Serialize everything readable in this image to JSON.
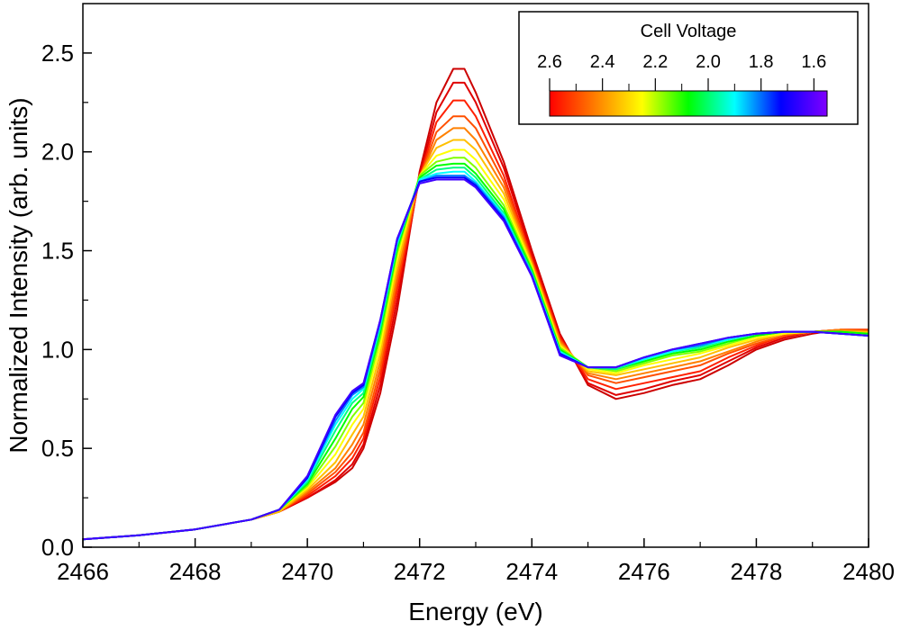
{
  "chart_data": {
    "type": "line",
    "title": "",
    "xlabel": "Energy (eV)",
    "ylabel": "Normalized Intensity (arb. units)",
    "xlim": [
      2466,
      2480
    ],
    "ylim": [
      0.0,
      2.75
    ],
    "x_ticks": [
      2466,
      2468,
      2470,
      2472,
      2474,
      2476,
      2478,
      2480
    ],
    "x_tick_labels": [
      "2466",
      "2468",
      "2470",
      "2472",
      "2474",
      "2476",
      "2478",
      "2480"
    ],
    "y_ticks": [
      0.0,
      0.5,
      1.0,
      1.5,
      2.0,
      2.5
    ],
    "y_tick_labels": [
      "0.0",
      "0.5",
      "1.0",
      "1.5",
      "2.0",
      "2.5"
    ],
    "grid": false,
    "colorbar": {
      "title": "Cell Voltage",
      "placement": "top-right",
      "range": [
        2.6,
        1.55
      ],
      "ticks": [
        2.6,
        2.4,
        2.2,
        2.0,
        1.8,
        1.6
      ],
      "tick_labels": [
        "2.6",
        "2.4",
        "2.2",
        "2.0",
        "1.8",
        "1.6"
      ],
      "colors": [
        "#ff0000",
        "#ff8000",
        "#ffff00",
        "#00ff00",
        "#00ffff",
        "#0000ff",
        "#8000ff"
      ]
    },
    "x": [
      2466.0,
      2467.0,
      2468.0,
      2469.0,
      2469.5,
      2470.0,
      2470.5,
      2470.8,
      2471.0,
      2471.3,
      2471.6,
      2472.0,
      2472.3,
      2472.6,
      2472.8,
      2473.0,
      2473.5,
      2474.0,
      2474.5,
      2475.0,
      2475.5,
      2476.0,
      2476.5,
      2477.0,
      2477.5,
      2478.0,
      2478.5,
      2479.0,
      2479.5,
      2480.0
    ],
    "series": [
      {
        "voltage": 2.6,
        "color": "#cc0000",
        "values": [
          0.04,
          0.06,
          0.09,
          0.14,
          0.18,
          0.25,
          0.33,
          0.4,
          0.5,
          0.78,
          1.2,
          1.9,
          2.25,
          2.42,
          2.42,
          2.3,
          1.95,
          1.5,
          1.08,
          0.82,
          0.75,
          0.78,
          0.82,
          0.85,
          0.92,
          1.0,
          1.05,
          1.08,
          1.1,
          1.1
        ]
      },
      {
        "voltage": 2.55,
        "color": "#e00000",
        "values": [
          0.04,
          0.06,
          0.09,
          0.14,
          0.18,
          0.25,
          0.34,
          0.42,
          0.52,
          0.82,
          1.25,
          1.88,
          2.2,
          2.35,
          2.35,
          2.25,
          1.92,
          1.48,
          1.07,
          0.83,
          0.77,
          0.8,
          0.84,
          0.87,
          0.94,
          1.01,
          1.06,
          1.09,
          1.1,
          1.1
        ]
      },
      {
        "voltage": 2.5,
        "color": "#ff2000",
        "values": [
          0.04,
          0.06,
          0.09,
          0.14,
          0.18,
          0.26,
          0.36,
          0.45,
          0.55,
          0.86,
          1.3,
          1.87,
          2.15,
          2.26,
          2.26,
          2.18,
          1.88,
          1.46,
          1.06,
          0.85,
          0.8,
          0.83,
          0.86,
          0.89,
          0.96,
          1.02,
          1.07,
          1.09,
          1.1,
          1.1
        ]
      },
      {
        "voltage": 2.45,
        "color": "#ff5000",
        "values": [
          0.04,
          0.06,
          0.09,
          0.14,
          0.18,
          0.27,
          0.38,
          0.48,
          0.58,
          0.9,
          1.34,
          1.87,
          2.1,
          2.18,
          2.18,
          2.12,
          1.85,
          1.45,
          1.05,
          0.87,
          0.83,
          0.86,
          0.89,
          0.92,
          0.98,
          1.03,
          1.07,
          1.09,
          1.1,
          1.1
        ]
      },
      {
        "voltage": 2.4,
        "color": "#ff8000",
        "values": [
          0.04,
          0.06,
          0.09,
          0.14,
          0.18,
          0.28,
          0.4,
          0.52,
          0.62,
          0.94,
          1.38,
          1.87,
          2.06,
          2.12,
          2.12,
          2.06,
          1.82,
          1.44,
          1.04,
          0.88,
          0.85,
          0.88,
          0.91,
          0.94,
          0.99,
          1.04,
          1.08,
          1.09,
          1.1,
          1.09
        ]
      },
      {
        "voltage": 2.3,
        "color": "#ffc000",
        "values": [
          0.04,
          0.06,
          0.09,
          0.14,
          0.18,
          0.29,
          0.43,
          0.57,
          0.66,
          0.98,
          1.42,
          1.88,
          2.02,
          2.06,
          2.06,
          2.01,
          1.79,
          1.43,
          1.03,
          0.89,
          0.87,
          0.9,
          0.93,
          0.96,
          1.01,
          1.05,
          1.08,
          1.09,
          1.09,
          1.09
        ]
      },
      {
        "voltage": 2.2,
        "color": "#ffff00",
        "values": [
          0.04,
          0.06,
          0.09,
          0.14,
          0.19,
          0.3,
          0.47,
          0.62,
          0.7,
          1.02,
          1.46,
          1.88,
          1.98,
          2.01,
          2.01,
          1.96,
          1.76,
          1.42,
          1.02,
          0.9,
          0.88,
          0.92,
          0.95,
          0.98,
          1.02,
          1.06,
          1.08,
          1.09,
          1.09,
          1.08
        ]
      },
      {
        "voltage": 2.1,
        "color": "#80ff00",
        "values": [
          0.04,
          0.06,
          0.09,
          0.14,
          0.19,
          0.31,
          0.51,
          0.66,
          0.73,
          1.06,
          1.49,
          1.88,
          1.95,
          1.97,
          1.97,
          1.92,
          1.73,
          1.41,
          1.01,
          0.91,
          0.89,
          0.93,
          0.97,
          0.99,
          1.03,
          1.07,
          1.09,
          1.09,
          1.09,
          1.08
        ]
      },
      {
        "voltage": 2.0,
        "color": "#00ff00",
        "values": [
          0.04,
          0.06,
          0.09,
          0.14,
          0.19,
          0.32,
          0.55,
          0.7,
          0.76,
          1.09,
          1.51,
          1.87,
          1.93,
          1.94,
          1.94,
          1.89,
          1.71,
          1.4,
          1.0,
          0.91,
          0.9,
          0.94,
          0.98,
          1.0,
          1.04,
          1.07,
          1.09,
          1.09,
          1.09,
          1.08
        ]
      },
      {
        "voltage": 1.9,
        "color": "#00ff80",
        "values": [
          0.04,
          0.06,
          0.09,
          0.14,
          0.19,
          0.33,
          0.59,
          0.73,
          0.78,
          1.11,
          1.53,
          1.86,
          1.91,
          1.92,
          1.92,
          1.87,
          1.69,
          1.39,
          0.99,
          0.91,
          0.9,
          0.95,
          0.99,
          1.01,
          1.05,
          1.08,
          1.09,
          1.09,
          1.08,
          1.07
        ]
      },
      {
        "voltage": 1.8,
        "color": "#00ffff",
        "values": [
          0.04,
          0.06,
          0.09,
          0.14,
          0.19,
          0.34,
          0.62,
          0.75,
          0.8,
          1.13,
          1.54,
          1.86,
          1.89,
          1.9,
          1.9,
          1.85,
          1.68,
          1.38,
          0.99,
          0.91,
          0.91,
          0.95,
          0.99,
          1.02,
          1.05,
          1.08,
          1.09,
          1.09,
          1.08,
          1.07
        ]
      },
      {
        "voltage": 1.7,
        "color": "#0080ff",
        "values": [
          0.04,
          0.06,
          0.09,
          0.14,
          0.19,
          0.35,
          0.64,
          0.77,
          0.81,
          1.14,
          1.55,
          1.85,
          1.88,
          1.88,
          1.88,
          1.84,
          1.67,
          1.38,
          0.98,
          0.91,
          0.91,
          0.96,
          1.0,
          1.02,
          1.06,
          1.08,
          1.09,
          1.09,
          1.08,
          1.07
        ]
      },
      {
        "voltage": 1.6,
        "color": "#0000ff",
        "values": [
          0.04,
          0.06,
          0.09,
          0.14,
          0.19,
          0.35,
          0.66,
          0.78,
          0.82,
          1.15,
          1.56,
          1.85,
          1.87,
          1.87,
          1.87,
          1.83,
          1.66,
          1.37,
          0.98,
          0.91,
          0.91,
          0.96,
          1.0,
          1.03,
          1.06,
          1.08,
          1.09,
          1.09,
          1.08,
          1.07
        ]
      },
      {
        "voltage": 1.55,
        "color": "#4000ff",
        "values": [
          0.04,
          0.06,
          0.09,
          0.14,
          0.19,
          0.36,
          0.67,
          0.79,
          0.83,
          1.15,
          1.56,
          1.84,
          1.86,
          1.86,
          1.86,
          1.82,
          1.65,
          1.37,
          0.97,
          0.91,
          0.91,
          0.96,
          1.0,
          1.03,
          1.06,
          1.08,
          1.09,
          1.09,
          1.08,
          1.07
        ]
      }
    ]
  }
}
